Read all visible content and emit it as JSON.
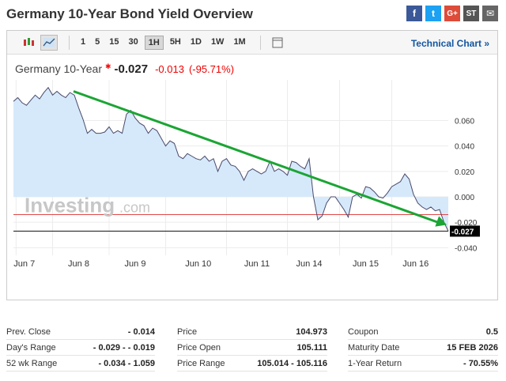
{
  "title": "Germany 10-Year Bond Yield Overview",
  "toolbar": {
    "timeframes": [
      "1",
      "5",
      "15",
      "30",
      "1H",
      "5H",
      "1D",
      "1W",
      "1M"
    ],
    "active_timeframe": "1H",
    "technical_link": "Technical Chart »"
  },
  "quote": {
    "name": "Germany 10-Year",
    "price": "-0.027",
    "change": "-0.013",
    "change_pct": "(-95.71%)"
  },
  "watermark": "Investing",
  "watermark_suffix": ".com",
  "chart_data": {
    "type": "area",
    "x_labels": [
      "Jun 7",
      "Jun 8",
      "Jun 9",
      "Jun 10",
      "Jun 11",
      "Jun 14",
      "Jun 15",
      "Jun 16"
    ],
    "y_ticks": [
      "0.060",
      "0.040",
      "0.020",
      "0.000",
      "-0.020",
      "-0.040"
    ],
    "ylim": [
      -0.046,
      0.092
    ],
    "current_label": "-0.027",
    "current_value": -0.027,
    "previous_close": -0.014,
    "values": [
      0.075,
      0.078,
      0.074,
      0.072,
      0.076,
      0.08,
      0.077,
      0.082,
      0.086,
      0.08,
      0.083,
      0.08,
      0.078,
      0.082,
      0.08,
      0.07,
      0.061,
      0.05,
      0.053,
      0.05,
      0.05,
      0.051,
      0.055,
      0.05,
      0.052,
      0.05,
      0.065,
      0.068,
      0.062,
      0.058,
      0.056,
      0.05,
      0.054,
      0.052,
      0.046,
      0.04,
      0.044,
      0.042,
      0.032,
      0.03,
      0.034,
      0.032,
      0.03,
      0.029,
      0.032,
      0.028,
      0.03,
      0.02,
      0.028,
      0.03,
      0.025,
      0.024,
      0.02,
      0.013,
      0.02,
      0.022,
      0.02,
      0.018,
      0.02,
      0.028,
      0.02,
      0.022,
      0.02,
      0.017,
      0.028,
      0.027,
      0.024,
      0.022,
      0.03,
      -0.0,
      -0.018,
      -0.015,
      -0.005,
      0.0,
      0.0,
      -0.005,
      -0.01,
      -0.016,
      -0.0,
      0.002,
      -0.001,
      0.008,
      0.007,
      0.004,
      0.0,
      -0.001,
      0.003,
      0.008,
      0.01,
      0.012,
      0.018,
      0.014,
      0.002,
      -0.005,
      -0.008,
      -0.01,
      -0.008,
      -0.011,
      -0.01,
      -0.02,
      -0.027
    ]
  },
  "stats": {
    "col1": [
      {
        "label": "Prev. Close",
        "value": "- 0.014"
      },
      {
        "label": "Day's Range",
        "value": "- 0.029 - - 0.019"
      },
      {
        "label": "52 wk Range",
        "value": "- 0.034 - 1.059"
      }
    ],
    "col2": [
      {
        "label": "Price",
        "value": "104.973"
      },
      {
        "label": "Price Open",
        "value": "105.111"
      },
      {
        "label": "Price Range",
        "value": "105.014 - 105.116"
      }
    ],
    "col3": [
      {
        "label": "Coupon",
        "value": "0.5"
      },
      {
        "label": "Maturity Date",
        "value": "15 FEB 2026"
      },
      {
        "label": "1-Year Return",
        "value": "- 70.55%"
      }
    ]
  },
  "colors": {
    "area_fill": "#d6e9fb",
    "line": "#4a4a6a",
    "trend_arrow": "#1ba534",
    "prev_close_line": "#e04848"
  }
}
